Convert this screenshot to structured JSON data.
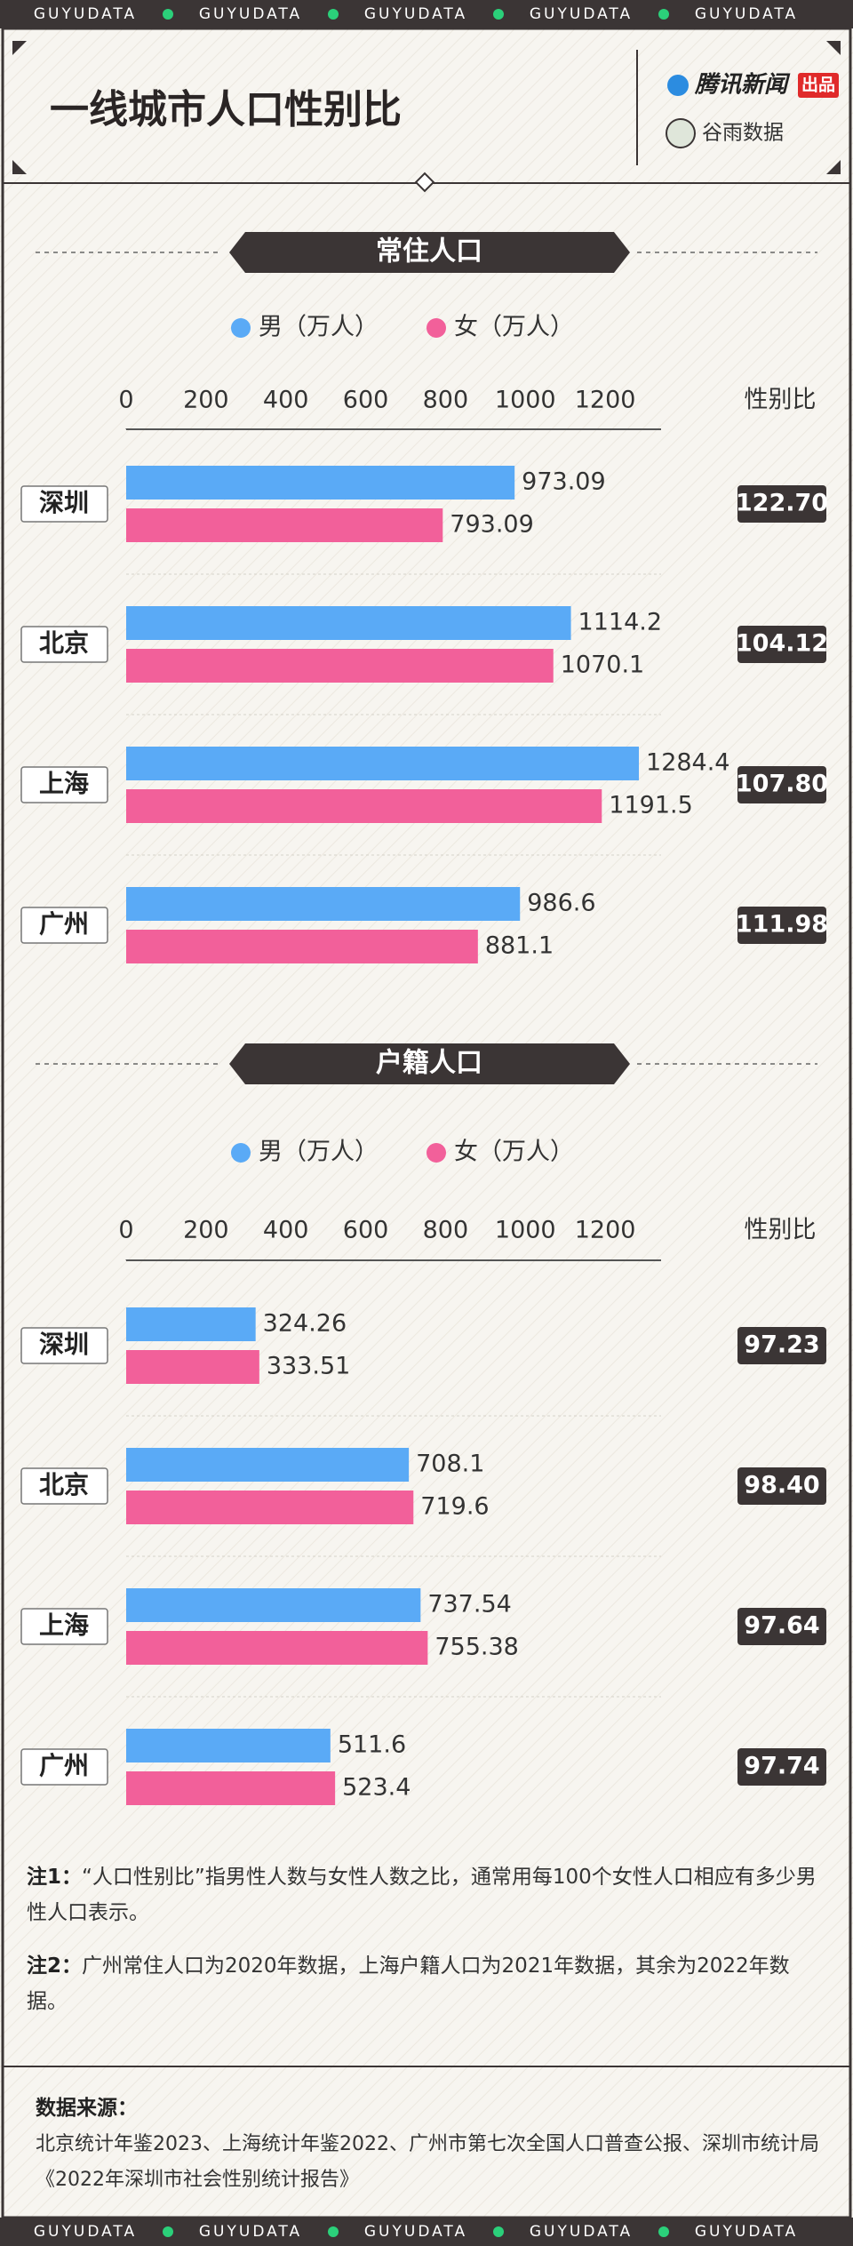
{
  "band_text": "GUYUDATA",
  "header": {
    "title": "一线城市人口性别比",
    "brand": "腾讯新闻",
    "brand_tag": "出品",
    "partner": "谷雨数据"
  },
  "chart_data": [
    {
      "type": "bar",
      "orientation": "horizontal",
      "title": "常住人口",
      "categories": [
        "深圳",
        "北京",
        "上海",
        "广州"
      ],
      "series": [
        {
          "name": "男（万人）",
          "color": "#5aaaf6",
          "values": [
            973.09,
            1114.2,
            1284.4,
            986.6
          ]
        },
        {
          "name": "女（万人）",
          "color": "#f2609a",
          "values": [
            793.09,
            1070.1,
            1191.5,
            881.1
          ]
        }
      ],
      "xlim": [
        0,
        1340
      ],
      "xticks": [
        0,
        200,
        400,
        600,
        800,
        1000,
        1200
      ],
      "sex_ratio": {
        "title": "性别比",
        "values": [
          122.7,
          104.12,
          107.8,
          111.98
        ],
        "value_labels": [
          "122.70",
          "104.12",
          "107.80",
          "111.98"
        ]
      }
    },
    {
      "type": "bar",
      "orientation": "horizontal",
      "title": "户籍人口",
      "categories": [
        "深圳",
        "北京",
        "上海",
        "广州"
      ],
      "series": [
        {
          "name": "男（万人）",
          "color": "#5aaaf6",
          "values": [
            324.26,
            708.1,
            737.54,
            511.6
          ]
        },
        {
          "name": "女（万人）",
          "color": "#f2609a",
          "values": [
            333.51,
            719.6,
            755.38,
            523.4
          ]
        }
      ],
      "xlim": [
        0,
        1340
      ],
      "xticks": [
        0,
        200,
        400,
        600,
        800,
        1000,
        1200
      ],
      "sex_ratio": {
        "title": "性别比",
        "values": [
          97.23,
          98.4,
          97.64,
          97.74
        ],
        "value_labels": [
          "97.23",
          "98.40",
          "97.64",
          "97.74"
        ]
      }
    }
  ],
  "notes": [
    {
      "label": "注1：",
      "text": "“人口性别比”指男性人数与女性人数之比，通常用每100个女性人口相应有多少男性人口表示。"
    },
    {
      "label": "注2：",
      "text": "广州常住人口为2020年数据，上海户籍人口为2021年数据，其余为2022年数据。"
    }
  ],
  "source": {
    "label": "数据来源：",
    "text": "北京统计年鉴2023、上海统计年鉴2022、广州市第七次全国人口普查公报、深圳市统计局《2022年深圳市社会性别统计报告》"
  }
}
